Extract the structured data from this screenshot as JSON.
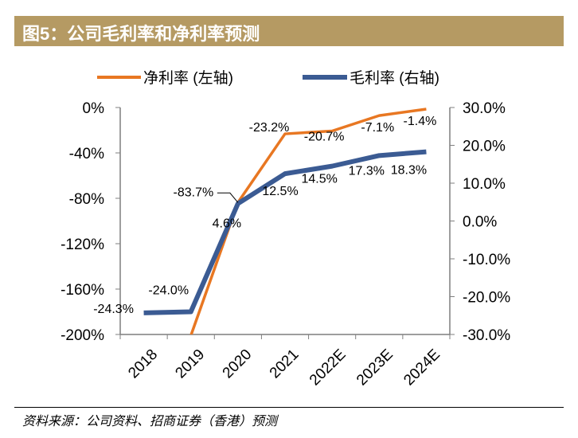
{
  "header": {
    "title": "图5：公司毛利率和净利率预测"
  },
  "footer": {
    "source": "资料来源：公司资料、招商证券（香港）预测"
  },
  "colors": {
    "title_bg": "#b59a63",
    "net_margin": "#e87722",
    "gross_margin": "#3b5b93"
  },
  "chart_data": {
    "type": "line",
    "title": "图5：公司毛利率和净利率预测",
    "categories": [
      "2018",
      "2019",
      "2020",
      "2021",
      "2022E",
      "2023E",
      "2024E"
    ],
    "series": [
      {
        "name": "净利率 (左轴)",
        "axis": "left",
        "color": "#e87722",
        "values": [
          null,
          -201.0,
          -83.7,
          -23.2,
          -20.7,
          -7.1,
          -1.4
        ],
        "labels": [
          "",
          "",
          "-83.7%",
          "-23.2%",
          "-20.7%",
          "-7.1%",
          "-1.4%"
        ]
      },
      {
        "name": "毛利率 (右轴)",
        "axis": "right",
        "color": "#3b5b93",
        "values": [
          -24.3,
          -24.0,
          4.6,
          12.5,
          14.5,
          17.3,
          18.3
        ],
        "labels": [
          "-24.3%",
          "-24.0%",
          "4.6%",
          "12.5%",
          "14.5%",
          "17.3%",
          "18.3%"
        ]
      }
    ],
    "left_axis": {
      "min": -200,
      "max": 0,
      "ticks": [
        "0%",
        "-40%",
        "-80%",
        "-120%",
        "-160%",
        "-200%"
      ]
    },
    "right_axis": {
      "min": -30,
      "max": 30,
      "ticks": [
        "30.0%",
        "20.0%",
        "10.0%",
        "0.0%",
        "-10.0%",
        "-20.0%",
        "-30.0%"
      ]
    },
    "legend": {
      "position": "top",
      "items": [
        "净利率 (左轴)",
        "毛利率 (右轴)"
      ]
    },
    "grid": false
  }
}
